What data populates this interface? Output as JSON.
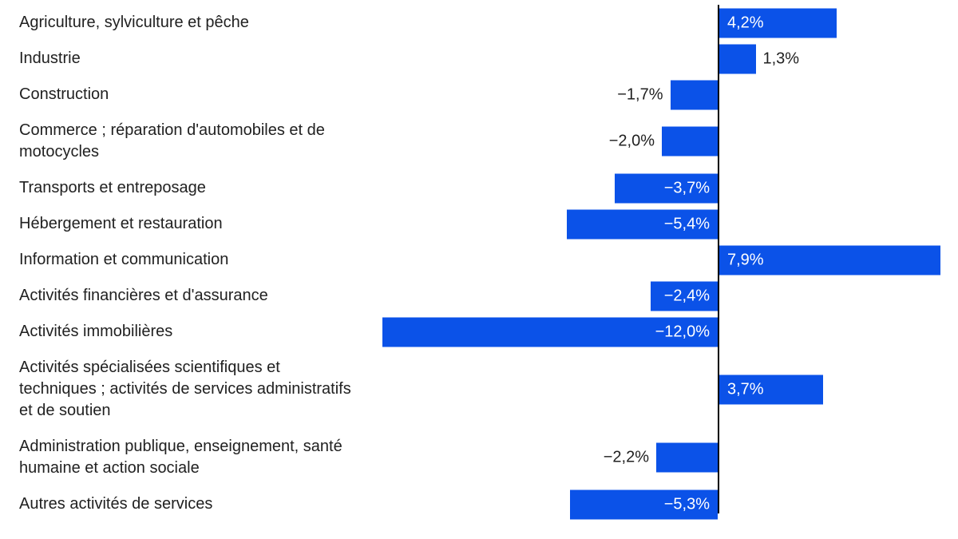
{
  "chart_data": {
    "type": "bar",
    "orientation": "horizontal",
    "title": "",
    "categories": [
      "Agriculture, sylviculture et pêche",
      "Industrie",
      "Construction",
      "Commerce ; réparation d'automobiles et de motocycles",
      "Transports et entreposage",
      "Hébergement et restauration",
      "Information et communication",
      "Activités financières et d'assurance",
      "Activités immobilières",
      "Activités spécialisées scientifiques et techniques ; activités de services administratifs et de soutien",
      "Administration publique, enseignement, santé humaine et action sociale",
      "Autres activités de services"
    ],
    "values": [
      4.2,
      1.3,
      -1.7,
      -2.0,
      -3.7,
      -5.4,
      7.9,
      -2.4,
      -12.0,
      3.7,
      -2.2,
      -5.3
    ],
    "value_labels": [
      "4,2%",
      "1,3%",
      "−1,7%",
      "−2,0%",
      "−3,7%",
      "−5,4%",
      "7,9%",
      "−2,4%",
      "−12,0%",
      "3,7%",
      "−2,2%",
      "−5,3%"
    ],
    "unit": "%",
    "xlim": [
      -12.5,
      8.6
    ],
    "grid": false,
    "legend": null,
    "bar_color": "#0b52e8",
    "category_label_color": "#212121",
    "inside_value_color": "#ffffff",
    "outside_value_color": "#212121",
    "axis_color": "#000000"
  }
}
